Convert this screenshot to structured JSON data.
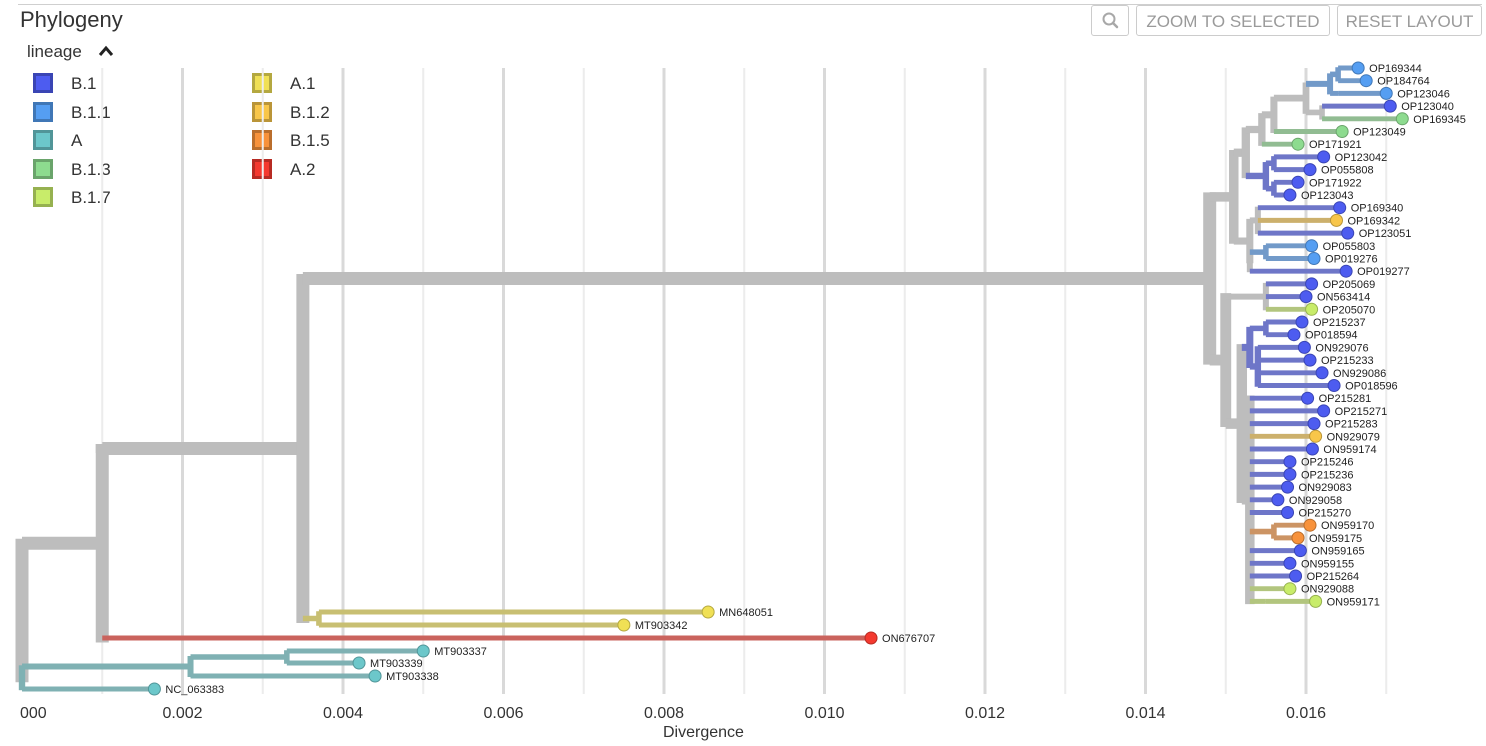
{
  "header": {
    "title": "Phylogeny",
    "zoom_to_selected_label": "ZOOM TO SELECTED",
    "reset_layout_label": "RESET LAYOUT",
    "zoom_icon": "magnifier-icon"
  },
  "legend": {
    "title": "lineage",
    "toggle_icon": "caret-up-icon",
    "items": [
      {
        "label": "B.1",
        "color": "#4d5cf0"
      },
      {
        "label": "B.1.1",
        "color": "#559ef2"
      },
      {
        "label": "A",
        "color": "#6cc7ca"
      },
      {
        "label": "B.1.3",
        "color": "#8ddb8f"
      },
      {
        "label": "B.1.7",
        "color": "#c8ec6a"
      },
      {
        "label": "A.1",
        "color": "#f0e055"
      },
      {
        "label": "B.1.2",
        "color": "#f8c64a"
      },
      {
        "label": "B.1.5",
        "color": "#f8923b"
      },
      {
        "label": "A.2",
        "color": "#f4392f"
      }
    ]
  },
  "axis": {
    "title": "Divergence",
    "ticks": [
      {
        "value": 0.0,
        "label": "000"
      },
      {
        "value": 0.002,
        "label": "0.002"
      },
      {
        "value": 0.004,
        "label": "0.004"
      },
      {
        "value": 0.006,
        "label": "0.006"
      },
      {
        "value": 0.008,
        "label": "0.008"
      },
      {
        "value": 0.01,
        "label": "0.010"
      },
      {
        "value": 0.012,
        "label": "0.012"
      },
      {
        "value": 0.014,
        "label": "0.014"
      },
      {
        "value": 0.016,
        "label": "0.016"
      }
    ]
  },
  "tree": {
    "colors": {
      "B.1": "#4d5cf0",
      "B.1.1": "#559ef2",
      "A": "#6cc7ca",
      "B.1.3": "#8ddb8f",
      "B.1.7": "#c8ec6a",
      "A.1": "#f0e055",
      "B.1.2": "#f8c64a",
      "B.1.5": "#f8923b",
      "A.2": "#f4392f"
    },
    "tips": [
      {
        "name": "OP169344",
        "lineage": "B.1.1",
        "div": 0.01665
      },
      {
        "name": "OP184764",
        "lineage": "B.1.1",
        "div": 0.01675
      },
      {
        "name": "OP123046",
        "lineage": "B.1.1",
        "div": 0.017
      },
      {
        "name": "OP123040",
        "lineage": "B.1",
        "div": 0.01705
      },
      {
        "name": "OP169345",
        "lineage": "B.1.3",
        "div": 0.0172
      },
      {
        "name": "OP123049",
        "lineage": "B.1.3",
        "div": 0.01645
      },
      {
        "name": "OP171921",
        "lineage": "B.1.3",
        "div": 0.0159
      },
      {
        "name": "OP123042",
        "lineage": "B.1",
        "div": 0.01622
      },
      {
        "name": "OP055808",
        "lineage": "B.1",
        "div": 0.01605
      },
      {
        "name": "OP171922",
        "lineage": "B.1",
        "div": 0.0159
      },
      {
        "name": "OP123043",
        "lineage": "B.1",
        "div": 0.0158
      },
      {
        "name": "OP169340",
        "lineage": "B.1",
        "div": 0.01642
      },
      {
        "name": "OP169342",
        "lineage": "B.1.2",
        "div": 0.01638
      },
      {
        "name": "OP123051",
        "lineage": "B.1",
        "div": 0.01652
      },
      {
        "name": "OP055803",
        "lineage": "B.1.1",
        "div": 0.01607
      },
      {
        "name": "OP019276",
        "lineage": "B.1.1",
        "div": 0.0161
      },
      {
        "name": "OP019277",
        "lineage": "B.1",
        "div": 0.0165
      },
      {
        "name": "OP205069",
        "lineage": "B.1",
        "div": 0.01607
      },
      {
        "name": "ON563414",
        "lineage": "B.1",
        "div": 0.016
      },
      {
        "name": "OP205070",
        "lineage": "B.1.7",
        "div": 0.01607
      },
      {
        "name": "OP215237",
        "lineage": "B.1",
        "div": 0.01595
      },
      {
        "name": "OP018594",
        "lineage": "B.1",
        "div": 0.01585
      },
      {
        "name": "ON929076",
        "lineage": "B.1",
        "div": 0.01598
      },
      {
        "name": "OP215233",
        "lineage": "B.1",
        "div": 0.01605
      },
      {
        "name": "ON929086",
        "lineage": "B.1",
        "div": 0.0162
      },
      {
        "name": "OP018596",
        "lineage": "B.1",
        "div": 0.01635
      },
      {
        "name": "OP215281",
        "lineage": "B.1",
        "div": 0.01602
      },
      {
        "name": "OP215271",
        "lineage": "B.1",
        "div": 0.01622
      },
      {
        "name": "OP215283",
        "lineage": "B.1",
        "div": 0.0161
      },
      {
        "name": "ON929079",
        "lineage": "B.1.2",
        "div": 0.01612
      },
      {
        "name": "ON959174",
        "lineage": "B.1",
        "div": 0.01608
      },
      {
        "name": "OP215246",
        "lineage": "B.1",
        "div": 0.0158
      },
      {
        "name": "OP215236",
        "lineage": "B.1",
        "div": 0.0158
      },
      {
        "name": "ON929083",
        "lineage": "B.1",
        "div": 0.01577
      },
      {
        "name": "ON929058",
        "lineage": "B.1",
        "div": 0.01565
      },
      {
        "name": "OP215270",
        "lineage": "B.1",
        "div": 0.01577
      },
      {
        "name": "ON959170",
        "lineage": "B.1.5",
        "div": 0.01605
      },
      {
        "name": "ON959175",
        "lineage": "B.1.5",
        "div": 0.0159
      },
      {
        "name": "ON959165",
        "lineage": "B.1",
        "div": 0.01593
      },
      {
        "name": "ON959155",
        "lineage": "B.1",
        "div": 0.0158
      },
      {
        "name": "OP215264",
        "lineage": "B.1",
        "div": 0.01587
      },
      {
        "name": "ON929088",
        "lineage": "B.1.7",
        "div": 0.0158
      },
      {
        "name": "ON959171",
        "lineage": "B.1.7",
        "div": 0.01612
      },
      {
        "name": "MN648051",
        "lineage": "A.1",
        "div": 0.00855
      },
      {
        "name": "MT903342",
        "lineage": "A.1",
        "div": 0.0075
      },
      {
        "name": "ON676707",
        "lineage": "A.2",
        "div": 0.01058
      },
      {
        "name": "MT903337",
        "lineage": "A",
        "div": 0.005
      },
      {
        "name": "MT903339",
        "lineage": "A",
        "div": 0.0042
      },
      {
        "name": "MT903338",
        "lineage": "A",
        "div": 0.0044
      },
      {
        "name": "NC_063383",
        "lineage": "A",
        "div": 0.00165
      }
    ]
  }
}
